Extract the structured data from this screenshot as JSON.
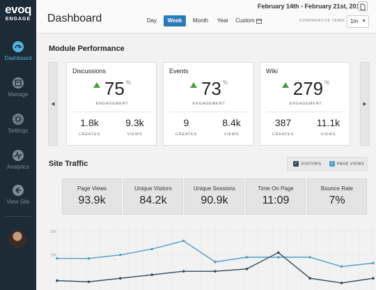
{
  "sidebar": {
    "brand": "evoq",
    "sub": "ENGAGE",
    "items": [
      {
        "label": "Dashboard",
        "icon": "dashboard-icon",
        "active": true
      },
      {
        "label": "Manage",
        "icon": "manage-icon",
        "active": false
      },
      {
        "label": "Settings",
        "icon": "gear-icon",
        "active": false
      },
      {
        "label": "Analytics",
        "icon": "analytics-icon",
        "active": false
      },
      {
        "label": "View Site",
        "icon": "view-site-icon",
        "active": false
      }
    ]
  },
  "header": {
    "title": "Dashboard",
    "date_range": "February 14th - February 21st, 2017",
    "tabs": [
      {
        "label": "Day",
        "active": false
      },
      {
        "label": "Week",
        "active": true
      },
      {
        "label": "Month",
        "active": false
      },
      {
        "label": "Year",
        "active": false
      },
      {
        "label": "Custom",
        "active": false
      }
    ],
    "comparative_term_label": "COMPARATIVE TERM:",
    "comparative_term_value": "1m"
  },
  "module_performance": {
    "title": "Module Performance",
    "cards": [
      {
        "name": "Discussions",
        "value": "75",
        "unit": "%",
        "metric": "ENGAGEMENT",
        "creates": "1.8k",
        "views": "9.3k",
        "creates_label": "CREATES",
        "views_label": "VIEWS"
      },
      {
        "name": "Events",
        "value": "73",
        "unit": "%",
        "metric": "ENGAGEMENT",
        "creates": "9",
        "views": "8.4k",
        "creates_label": "CREATES",
        "views_label": "VIEWS"
      },
      {
        "name": "Wiki",
        "value": "279",
        "unit": "%",
        "metric": "ENGAGEMENT",
        "creates": "387",
        "views": "11.1k",
        "creates_label": "CREATES",
        "views_label": "VIEWS"
      }
    ]
  },
  "site_traffic": {
    "title": "Site Traffic",
    "legend": [
      {
        "label": "VISITORS",
        "checked": true,
        "color": "#2e4a5c"
      },
      {
        "label": "PAGE VIEWS",
        "checked": true,
        "color": "#4e9ec4"
      }
    ],
    "stats": [
      {
        "label": "Page Views",
        "value": "93.9k"
      },
      {
        "label": "Unique Visitors",
        "value": "84.2k"
      },
      {
        "label": "Unique Sessions",
        "value": "90.9k"
      },
      {
        "label": "Time On Page",
        "value": "11:09"
      },
      {
        "label": "Bounce Rate",
        "value": "7%"
      }
    ]
  },
  "chart_data": {
    "type": "line",
    "y_ticks": [
      "25K",
      "15K"
    ],
    "series": [
      {
        "color": "#4e9ec4",
        "values": [
          13.5,
          13.5,
          15,
          17.5,
          21,
          12,
          14,
          14,
          14,
          10,
          11.5
        ]
      },
      {
        "color": "#2e4a5c",
        "values": [
          4,
          3.5,
          5,
          6.5,
          8,
          8,
          9,
          16,
          5,
          3,
          5
        ]
      }
    ],
    "ylim": [
      0,
      28
    ]
  }
}
